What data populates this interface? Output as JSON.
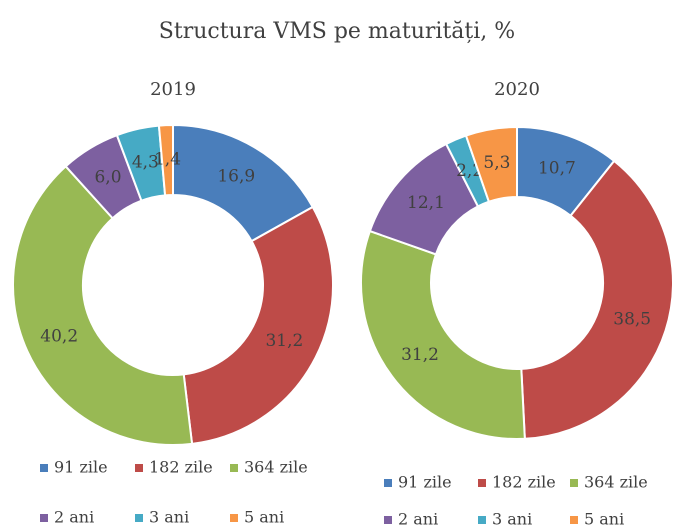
{
  "title": "Structura VMS pe maturități, %",
  "chart_data": [
    {
      "type": "donut",
      "title": "2019",
      "categories": [
        "91 zile",
        "182 zile",
        "364 zile",
        "2 ani",
        "3 ani",
        "5 ani"
      ],
      "values": [
        16.9,
        31.2,
        40.2,
        6.0,
        4.3,
        1.4
      ],
      "value_labels": [
        "16,9",
        "31,2",
        "40,2",
        "6,0",
        "4,3",
        "1,4"
      ],
      "colors": [
        "#4a7ebb",
        "#be4b48",
        "#98b954",
        "#7d60a0",
        "#46aac5",
        "#f79646"
      ]
    },
    {
      "type": "donut",
      "title": "2020",
      "categories": [
        "91 zile",
        "182 zile",
        "364 zile",
        "2 ani",
        "3 ani",
        "5 ani"
      ],
      "values": [
        10.7,
        38.5,
        31.2,
        12.1,
        2.2,
        5.3
      ],
      "value_labels": [
        "10,7",
        "38,5",
        "31,2",
        "12,1",
        "2,2",
        "5,3"
      ],
      "colors": [
        "#4a7ebb",
        "#be4b48",
        "#98b954",
        "#7d60a0",
        "#46aac5",
        "#f79646"
      ]
    }
  ]
}
